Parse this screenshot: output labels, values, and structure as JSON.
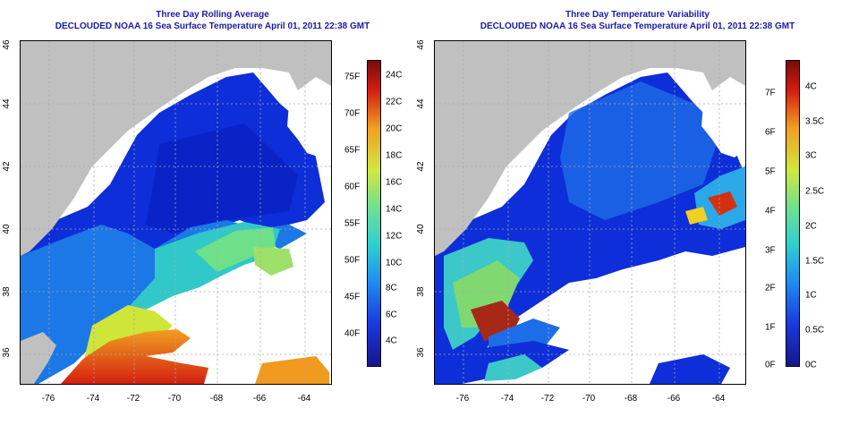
{
  "left_panel": {
    "title_line1": "Three Day Rolling Average",
    "title_line2": "DECLOUDED NOAA 16 Sea Surface Temperature April 01, 2011 22:38 GMT",
    "x_ticks": [
      "-76",
      "-74",
      "-72",
      "-70",
      "-68",
      "-66",
      "-64"
    ],
    "y_ticks": [
      "46",
      "44",
      "42",
      "40",
      "38",
      "36"
    ],
    "colorbar_f": [
      "75F",
      "70F",
      "65F",
      "60F",
      "55F",
      "50F",
      "45F",
      "40F"
    ],
    "colorbar_c": [
      "24C",
      "22C",
      "20C",
      "18C",
      "16C",
      "14C",
      "12C",
      "10C",
      "8C",
      "6C",
      "4C"
    ]
  },
  "right_panel": {
    "title_line1": "Three Day Temperature Variability",
    "title_line2": "DECLOUDED NOAA 16 Sea Surface Temperature April 01, 2011 22:38 GMT",
    "x_ticks": [
      "-76",
      "-74",
      "-72",
      "-70",
      "-68",
      "-66",
      "-64"
    ],
    "y_ticks": [
      "46",
      "44",
      "42",
      "40",
      "38",
      "36"
    ],
    "colorbar_f": [
      "7F",
      "6F",
      "5F",
      "4F",
      "3F",
      "2F",
      "1F",
      "0F"
    ],
    "colorbar_c": [
      "4C",
      "3.5C",
      "3C",
      "2.5C",
      "2C",
      "1.5C",
      "1C",
      "0.5C",
      "0C"
    ]
  },
  "colors": {
    "land": "#c0c0c0",
    "cold": "#0d2ed8",
    "warm": "#c8280f",
    "title": "#1a1aa8"
  }
}
